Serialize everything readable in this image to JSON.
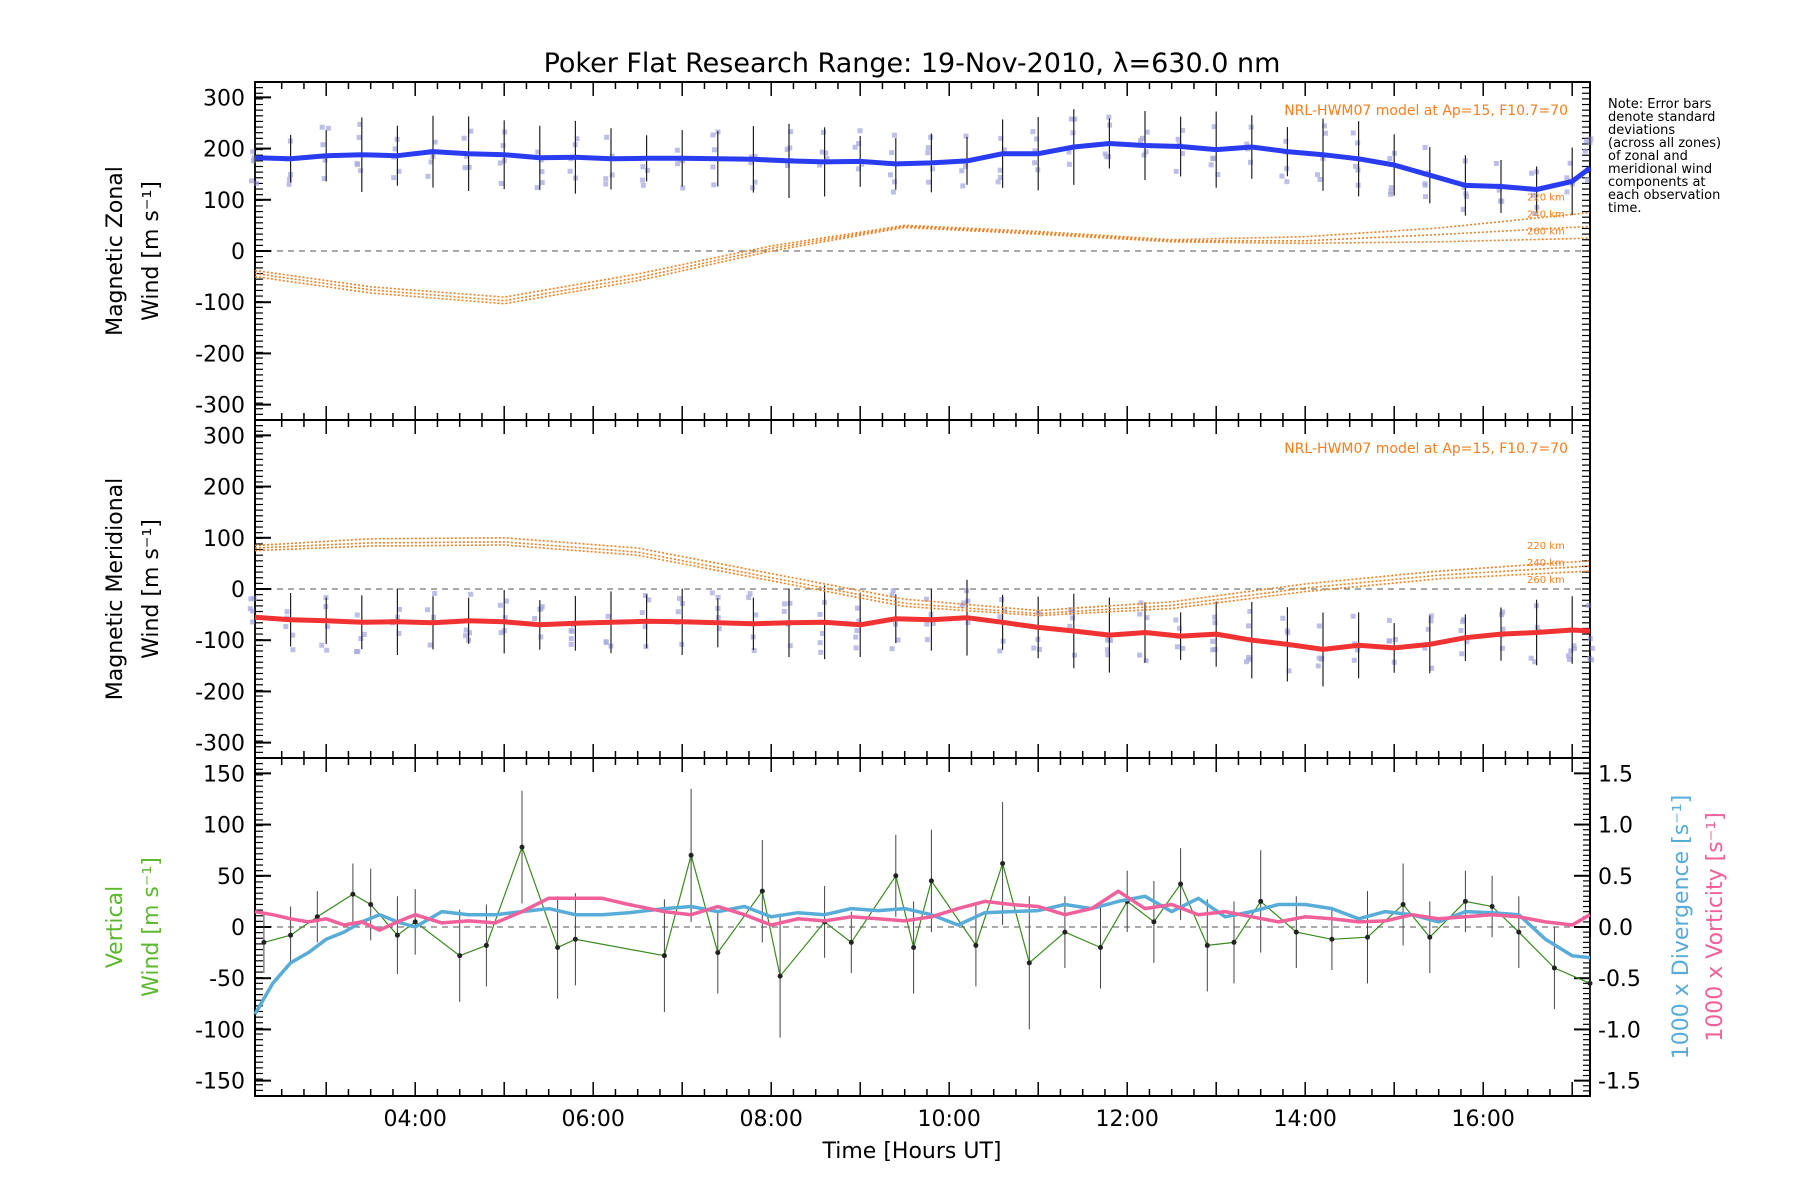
{
  "title": "Poker Flat Research Range: 19-Nov-2010, λ=630.0 nm",
  "note": [
    "Note: Error bars",
    "denote standard",
    "deviations",
    "(across all zones)",
    "of zonal and",
    "meridional wind",
    "components at",
    "each observation",
    "time."
  ],
  "colors": {
    "zonal": "#2a3cf0",
    "meridional": "#f03232",
    "vertical_label": "#5cb82e",
    "vertical_line": "#3a8a1f",
    "divergence": "#58acd8",
    "vorticity": "#f0609a",
    "model": "#f08020",
    "scatter": "#a8a8e0",
    "errorbar": "#222222"
  },
  "chart_data": [
    {
      "type": "line",
      "panel": "zonal",
      "ylabel_line1": "Magnetic Zonal",
      "ylabel_line2": "Wind [m s⁻¹]",
      "ylim": [
        -330,
        330
      ],
      "yticks": [
        300,
        200,
        100,
        0,
        -100,
        -200,
        -300
      ],
      "model_label": "NRL-HWM07 model at Ap=15, F10.7=70",
      "altitude_labels": [
        "220 km",
        "240 km",
        "260 km"
      ],
      "series": [
        {
          "name": "Zonal wind",
          "x": [
            2.2,
            2.6,
            3.0,
            3.4,
            3.8,
            4.2,
            4.6,
            5.0,
            5.4,
            5.8,
            6.2,
            6.6,
            7.0,
            7.4,
            7.8,
            8.2,
            8.6,
            9.0,
            9.4,
            9.8,
            10.2,
            10.6,
            11.0,
            11.4,
            11.8,
            12.2,
            12.6,
            13.0,
            13.4,
            13.8,
            14.2,
            14.6,
            15.0,
            15.4,
            15.8,
            16.2,
            16.6,
            17.0,
            17.2
          ],
          "values": [
            182,
            180,
            186,
            188,
            186,
            194,
            190,
            188,
            182,
            183,
            180,
            181,
            181,
            180,
            179,
            176,
            174,
            175,
            170,
            172,
            176,
            190,
            190,
            203,
            210,
            206,
            204,
            198,
            203,
            194,
            188,
            180,
            168,
            148,
            128,
            126,
            120,
            136,
            162
          ]
        },
        {
          "name": "Model 220 km",
          "x": [
            2.2,
            3.5,
            5.0,
            6.5,
            8.0,
            9.5,
            11.0,
            12.5,
            14.0,
            15.5,
            17.2
          ],
          "values": [
            -38,
            -70,
            -90,
            -45,
            10,
            50,
            38,
            22,
            28,
            45,
            75
          ]
        },
        {
          "name": "Model 240 km",
          "x": [
            2.2,
            3.5,
            5.0,
            6.5,
            8.0,
            9.5,
            11.0,
            12.5,
            14.0,
            15.5,
            17.2
          ],
          "values": [
            -44,
            -76,
            -97,
            -52,
            5,
            48,
            35,
            20,
            20,
            32,
            48
          ]
        },
        {
          "name": "Model 260 km",
          "x": [
            2.2,
            3.5,
            5.0,
            6.5,
            8.0,
            9.5,
            11.0,
            12.5,
            14.0,
            15.5,
            17.2
          ],
          "values": [
            -50,
            -82,
            -103,
            -58,
            0,
            46,
            33,
            18,
            15,
            18,
            25
          ]
        }
      ]
    },
    {
      "type": "line",
      "panel": "meridional",
      "ylabel_line1": "Magnetic Meridional",
      "ylabel_line2": "Wind [m s⁻¹]",
      "ylim": [
        -330,
        330
      ],
      "yticks": [
        300,
        200,
        100,
        0,
        -100,
        -200,
        -300
      ],
      "model_label": "NRL-HWM07 model at Ap=15, F10.7=70",
      "altitude_labels": [
        "220 km",
        "240 km",
        "260 km"
      ],
      "series": [
        {
          "name": "Meridional wind",
          "x": [
            2.2,
            2.6,
            3.0,
            3.4,
            3.8,
            4.2,
            4.6,
            5.0,
            5.4,
            5.8,
            6.2,
            6.6,
            7.0,
            7.4,
            7.8,
            8.2,
            8.6,
            9.0,
            9.4,
            9.8,
            10.2,
            10.6,
            11.0,
            11.4,
            11.8,
            12.2,
            12.6,
            13.0,
            13.4,
            13.8,
            14.2,
            14.6,
            15.0,
            15.4,
            15.8,
            16.2,
            16.6,
            17.0,
            17.2
          ],
          "values": [
            -55,
            -60,
            -62,
            -65,
            -64,
            -66,
            -62,
            -64,
            -70,
            -67,
            -65,
            -63,
            -64,
            -66,
            -68,
            -66,
            -65,
            -70,
            -58,
            -60,
            -56,
            -65,
            -75,
            -82,
            -90,
            -85,
            -92,
            -88,
            -100,
            -108,
            -118,
            -110,
            -115,
            -108,
            -95,
            -88,
            -85,
            -80,
            -82
          ]
        },
        {
          "name": "Model 220 km",
          "x": [
            2.2,
            3.5,
            5.0,
            6.5,
            8.0,
            9.5,
            11.0,
            12.5,
            14.0,
            15.5,
            17.2
          ],
          "values": [
            85,
            98,
            100,
            80,
            30,
            -20,
            -42,
            -25,
            10,
            35,
            55
          ]
        },
        {
          "name": "Model 240 km",
          "x": [
            2.2,
            3.5,
            5.0,
            6.5,
            8.0,
            9.5,
            11.0,
            12.5,
            14.0,
            15.5,
            17.2
          ],
          "values": [
            80,
            90,
            92,
            72,
            22,
            -28,
            -48,
            -32,
            2,
            27,
            45
          ]
        },
        {
          "name": "Model 260 km",
          "x": [
            2.2,
            3.5,
            5.0,
            6.5,
            8.0,
            9.5,
            11.0,
            12.5,
            14.0,
            15.5,
            17.2
          ],
          "values": [
            75,
            84,
            86,
            66,
            16,
            -34,
            -52,
            -38,
            -5,
            20,
            35
          ]
        }
      ]
    },
    {
      "type": "line",
      "panel": "vertical",
      "ylabel_line1": "Vertical",
      "ylabel_line2": "Wind [m s⁻¹]",
      "ylim": [
        -165,
        165
      ],
      "yticks": [
        150,
        100,
        50,
        0,
        -50,
        -100,
        -150
      ],
      "y2label_div": "1000 x Divergence [s⁻¹]",
      "y2label_vort": "1000 x Vorticity [s⁻¹]",
      "y2lim": [
        -1.65,
        1.65
      ],
      "y2ticks": [
        "1.5",
        "1.0",
        "0.5",
        "0.0",
        "-0.5",
        "-1.0",
        "-1.5"
      ],
      "series": [
        {
          "name": "Vertical wind",
          "x": [
            2.3,
            2.6,
            2.9,
            3.3,
            3.5,
            3.8,
            4.0,
            4.5,
            4.8,
            5.2,
            5.6,
            5.8,
            6.8,
            7.1,
            7.4,
            7.9,
            8.1,
            8.6,
            8.9,
            9.4,
            9.6,
            9.8,
            10.3,
            10.6,
            10.9,
            11.3,
            11.7,
            12.0,
            12.3,
            12.6,
            12.9,
            13.2,
            13.5,
            13.9,
            14.3,
            14.7,
            15.1,
            15.4,
            15.8,
            16.1,
            16.4,
            16.8,
            17.2
          ],
          "values": [
            -15,
            -8,
            10,
            32,
            22,
            -8,
            5,
            -28,
            -18,
            78,
            -20,
            -12,
            -28,
            70,
            -25,
            35,
            -48,
            5,
            -15,
            50,
            -20,
            45,
            -18,
            62,
            -35,
            -5,
            -20,
            25,
            5,
            42,
            -18,
            -15,
            25,
            -5,
            -12,
            -10,
            22,
            -10,
            25,
            20,
            -5,
            -40,
            -55
          ],
          "err": [
            30,
            28,
            25,
            30,
            35,
            38,
            32,
            45,
            40,
            55,
            50,
            45,
            55,
            65,
            40,
            50,
            60,
            35,
            30,
            40,
            45,
            50,
            40,
            60,
            65,
            35,
            40,
            30,
            40,
            35,
            45,
            40,
            50,
            35,
            30,
            45,
            40,
            35,
            30,
            30,
            35,
            40,
            45
          ]
        },
        {
          "name": "Divergence",
          "x": [
            2.2,
            2.4,
            2.6,
            2.8,
            3.0,
            3.2,
            3.4,
            3.6,
            3.8,
            4.0,
            4.3,
            4.6,
            4.9,
            5.2,
            5.5,
            5.8,
            6.1,
            6.4,
            6.8,
            7.1,
            7.4,
            7.7,
            8.0,
            8.3,
            8.6,
            8.9,
            9.2,
            9.5,
            9.8,
            10.1,
            10.4,
            10.7,
            11.0,
            11.3,
            11.6,
            11.9,
            12.2,
            12.5,
            12.8,
            13.1,
            13.4,
            13.7,
            14.0,
            14.3,
            14.6,
            14.9,
            15.2,
            15.5,
            15.8,
            16.1,
            16.4,
            16.7,
            17.0,
            17.2
          ],
          "values": [
            -0.85,
            -0.55,
            -0.35,
            -0.25,
            -0.12,
            -0.05,
            0.05,
            0.12,
            0.05,
            0.0,
            0.15,
            0.12,
            0.12,
            0.15,
            0.18,
            0.12,
            0.12,
            0.14,
            0.18,
            0.2,
            0.15,
            0.2,
            0.1,
            0.14,
            0.12,
            0.18,
            0.16,
            0.18,
            0.12,
            0.02,
            0.14,
            0.15,
            0.16,
            0.22,
            0.18,
            0.25,
            0.3,
            0.15,
            0.28,
            0.1,
            0.15,
            0.22,
            0.22,
            0.18,
            0.08,
            0.15,
            0.12,
            0.05,
            0.15,
            0.14,
            0.12,
            -0.12,
            -0.28,
            -0.3
          ]
        },
        {
          "name": "Vorticity",
          "x": [
            2.2,
            2.4,
            2.6,
            2.8,
            3.0,
            3.2,
            3.4,
            3.6,
            3.8,
            4.0,
            4.3,
            4.6,
            4.9,
            5.2,
            5.5,
            5.8,
            6.1,
            6.4,
            6.8,
            7.1,
            7.4,
            7.7,
            8.0,
            8.3,
            8.6,
            8.9,
            9.2,
            9.5,
            9.8,
            10.1,
            10.4,
            10.7,
            11.0,
            11.3,
            11.6,
            11.9,
            12.2,
            12.5,
            12.8,
            13.1,
            13.4,
            13.7,
            14.0,
            14.3,
            14.6,
            14.9,
            15.2,
            15.5,
            15.8,
            16.1,
            16.4,
            16.7,
            17.0,
            17.2
          ],
          "values": [
            0.15,
            0.12,
            0.08,
            0.05,
            0.08,
            0.02,
            0.05,
            -0.03,
            0.05,
            0.12,
            0.04,
            0.06,
            0.04,
            0.15,
            0.28,
            0.28,
            0.28,
            0.22,
            0.15,
            0.12,
            0.2,
            0.12,
            0.02,
            0.08,
            0.06,
            0.1,
            0.08,
            0.06,
            0.1,
            0.18,
            0.25,
            0.22,
            0.2,
            0.12,
            0.18,
            0.35,
            0.18,
            0.22,
            0.12,
            0.15,
            0.1,
            0.05,
            0.1,
            0.08,
            0.05,
            0.06,
            0.12,
            0.08,
            0.1,
            0.12,
            0.1,
            0.05,
            0.02,
            0.12
          ]
        }
      ]
    }
  ],
  "xaxis": {
    "label": "Time [Hours UT]",
    "xlim": [
      2.2,
      17.2
    ],
    "ticks": [
      {
        "v": 4,
        "label": "04:00"
      },
      {
        "v": 6,
        "label": "06:00"
      },
      {
        "v": 8,
        "label": "08:00"
      },
      {
        "v": 10,
        "label": "10:00"
      },
      {
        "v": 12,
        "label": "12:00"
      },
      {
        "v": 14,
        "label": "14:00"
      },
      {
        "v": 16,
        "label": "16:00"
      }
    ]
  }
}
